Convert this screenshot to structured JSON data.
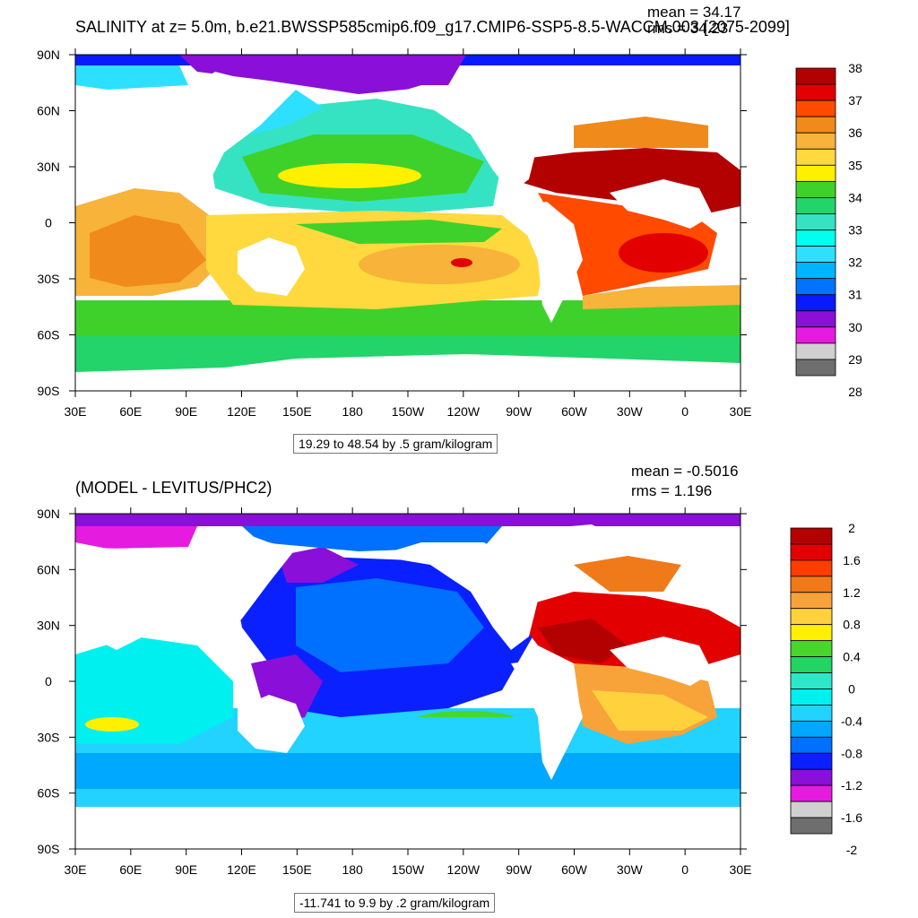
{
  "chart_data": [
    {
      "type": "heatmap",
      "title": "SALINITY at z=   5.0m, b.e21.BWSSP585cmip6.f09_g17.CMIP6-SSP5-8.5-WACCM.003 [2075-2099]",
      "stats": {
        "mean": "mean = 34.17",
        "rms": "rms = 34.23"
      },
      "subtitle": "19.29 to 48.54 by .5 gram/kilogram",
      "x_ticks": [
        "30E",
        "60E",
        "90E",
        "120E",
        "150E",
        "180",
        "150W",
        "120W",
        "90W",
        "60W",
        "30W",
        "0",
        "30E"
      ],
      "y_ticks": [
        "90N",
        "60N",
        "30N",
        "0",
        "30S",
        "60S",
        "90S"
      ],
      "colorbar": {
        "labels": [
          "38",
          "37",
          "36",
          "35",
          "34",
          "33",
          "32",
          "31",
          "30",
          "29",
          "28"
        ],
        "colors": [
          "#b30000",
          "#e30000",
          "#ff4a00",
          "#f08a1a",
          "#f7b33a",
          "#ffd93d",
          "#fff000",
          "#3ed12b",
          "#22d46a",
          "#35e3c3",
          "#00ffee",
          "#2de0ff",
          "#00b5ff",
          "#0073ff",
          "#0a1aff",
          "#8a0fd8",
          "#e61be0",
          "#d0d0d0",
          "#6e6e6e"
        ]
      }
    },
    {
      "type": "heatmap",
      "title": "(MODEL - LEVITUS/PHC2)",
      "stats": {
        "mean": "mean = -0.5016",
        "rms": "rms = 1.196"
      },
      "subtitle": "-11.741 to 9.9 by .2 gram/kilogram",
      "x_ticks": [
        "30E",
        "60E",
        "90E",
        "120E",
        "150E",
        "180",
        "150W",
        "120W",
        "90W",
        "60W",
        "30W",
        "0",
        "30E"
      ],
      "y_ticks": [
        "90N",
        "60N",
        "30N",
        "0",
        "30S",
        "60S",
        "90S"
      ],
      "colorbar": {
        "labels": [
          "2",
          "1.6",
          "1.2",
          "0.8",
          "0.4",
          "0",
          "-0.4",
          "-0.8",
          "-1.2",
          "-1.6",
          "-2"
        ],
        "colors": [
          "#b30000",
          "#e30000",
          "#ff3d00",
          "#f07a1a",
          "#f7a33a",
          "#ffd23d",
          "#fff000",
          "#48d62b",
          "#22d462",
          "#2de8c8",
          "#00f0f0",
          "#22d2ff",
          "#00a8ff",
          "#0070ff",
          "#0a20ff",
          "#8a0fd8",
          "#e61be0",
          "#d0d0d0",
          "#6e6e6e"
        ]
      }
    }
  ]
}
